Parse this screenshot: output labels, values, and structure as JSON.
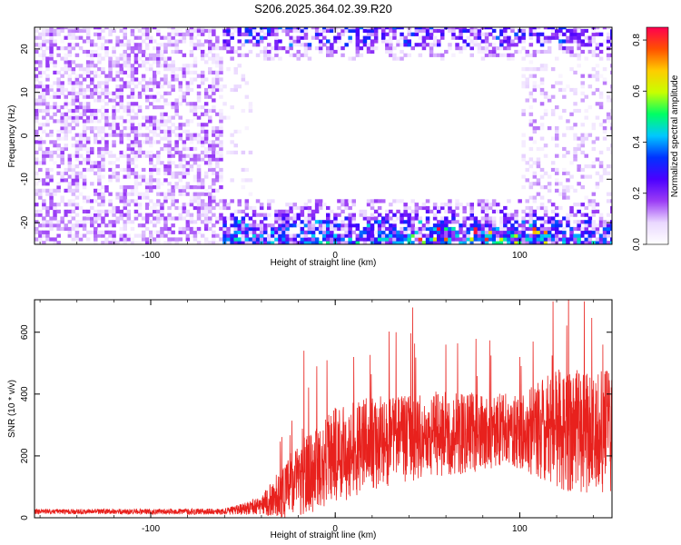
{
  "title": "S206.2025.364.02.39.R20",
  "chart_data": [
    {
      "type": "heatmap",
      "xlabel": "Height of straight line (km)",
      "ylabel": "Frequency (Hz)",
      "xlim": [
        -163,
        150
      ],
      "ylim": [
        -25,
        25
      ],
      "xticks": [
        -100,
        0,
        100
      ],
      "xtick_labels": [
        "-100",
        "0",
        "100"
      ],
      "yticks": [
        -20,
        -10,
        0,
        10,
        20
      ],
      "ytick_labels": [
        "-20",
        "-10",
        "0",
        "10",
        "20"
      ],
      "colorbar": {
        "label": "Normalized spectral amplitude",
        "range": [
          0,
          0.85
        ],
        "ticks": [
          0.0,
          0.2,
          0.4,
          0.6,
          0.8
        ],
        "tick_labels": [
          "0.0",
          "0.2",
          "0.4",
          "0.6",
          "0.8"
        ],
        "colors": [
          "#ffffff",
          "#ead8ff",
          "#9b3cf5",
          "#4b00ff",
          "#0032ff",
          "#00c8ff",
          "#00ff64",
          "#c8ff00",
          "#ffcc00",
          "#ff5000",
          "#ff0050"
        ]
      },
      "regions": [
        {
          "description_x": [
            -163,
            -62
          ],
          "freq": [
            -25,
            25
          ],
          "amplitude": "0.05-0.2"
        },
        {
          "description_x": [
            -62,
            150
          ],
          "freq": [
            -25,
            -15
          ],
          "amplitude": "0.1-0.85"
        },
        {
          "description_x": [
            -62,
            150
          ],
          "freq": [
            18,
            25
          ],
          "amplitude": "0.05-0.4"
        },
        {
          "description_x": [
            100,
            150
          ],
          "freq": [
            -15,
            18
          ],
          "amplitude": "0.05-0.15"
        }
      ]
    },
    {
      "type": "line",
      "xlabel": "Height of straight line (km)",
      "ylabel": "SNR (10 * v/v)",
      "xlim": [
        -163,
        150
      ],
      "ylim": [
        0,
        705
      ],
      "xticks": [
        -100,
        0,
        100
      ],
      "xtick_labels": [
        "-100",
        "0",
        "100"
      ],
      "yticks": [
        0,
        200,
        400,
        600
      ],
      "ytick_labels": [
        "0",
        "200",
        "400",
        "600"
      ],
      "series": [
        {
          "name": "SNR",
          "color": "#e8211d",
          "baseline_points": [
            {
              "x": -163,
              "y": 20
            },
            {
              "x": -60,
              "y": 20
            },
            {
              "x": -40,
              "y": 40
            },
            {
              "x": -25,
              "y": 100
            },
            {
              "x": -10,
              "y": 160
            },
            {
              "x": 0,
              "y": 200
            },
            {
              "x": 20,
              "y": 240
            },
            {
              "x": 50,
              "y": 270
            },
            {
              "x": 100,
              "y": 280
            },
            {
              "x": 150,
              "y": 280
            }
          ],
          "spread_points": [
            {
              "x": -163,
              "y": 8
            },
            {
              "x": -60,
              "y": 10
            },
            {
              "x": -40,
              "y": 30
            },
            {
              "x": -25,
              "y": 110
            },
            {
              "x": 0,
              "y": 160
            },
            {
              "x": 50,
              "y": 140
            },
            {
              "x": 100,
              "y": 120
            },
            {
              "x": 120,
              "y": 200
            },
            {
              "x": 150,
              "y": 200
            }
          ],
          "peaks": [
            {
              "x": -17,
              "y": 540
            },
            {
              "x": -10,
              "y": 490
            },
            {
              "x": 10,
              "y": 520
            },
            {
              "x": 33,
              "y": 600
            },
            {
              "x": 42,
              "y": 680
            },
            {
              "x": 60,
              "y": 560
            },
            {
              "x": 100,
              "y": 520
            },
            {
              "x": 118,
              "y": 700
            },
            {
              "x": 135,
              "y": 700
            },
            {
              "x": 145,
              "y": 560
            }
          ]
        }
      ]
    }
  ]
}
